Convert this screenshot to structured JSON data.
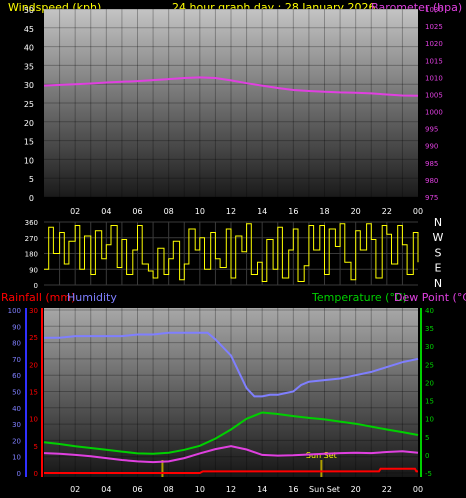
{
  "header": {
    "windspeed_label": "Windspeed (kph)",
    "title": "24 hour graph day : 28 January 2026",
    "barometer_label": "Barometer (hpa)"
  },
  "wind_panel": {
    "left_ticks": [
      "0",
      "5",
      "10",
      "15",
      "20",
      "25",
      "30",
      "35",
      "40",
      "45",
      "50"
    ],
    "right_ticks": [
      "975",
      "980",
      "985",
      "990",
      "995",
      "1000",
      "1005",
      "1010",
      "1015",
      "1020",
      "1025",
      "1030"
    ],
    "hour_ticks": [
      "02",
      "04",
      "06",
      "08",
      "10",
      "12",
      "14",
      "16",
      "18",
      "20",
      "22",
      "00"
    ]
  },
  "direction_panel": {
    "left_ticks": [
      "0",
      "90",
      "180",
      "270",
      "360"
    ],
    "compass": [
      "N",
      "W",
      "S",
      "E",
      "N"
    ]
  },
  "temp_panel": {
    "rainfall_label": "Rainfall (mm)",
    "humidity_label": "Humidity",
    "temperature_label": "Temperature (°C)",
    "dewpoint_label": "Dew Point (°C)",
    "humidity_ticks": [
      "0",
      "10",
      "20",
      "30",
      "40",
      "50",
      "60",
      "70",
      "80",
      "90",
      "100"
    ],
    "rain_ticks": [
      "0",
      "5",
      "10",
      "15",
      "20",
      "25",
      "30"
    ],
    "temp_ticks": [
      "-5",
      "0",
      "5",
      "10",
      "15",
      "20",
      "25",
      "30",
      "35",
      "40"
    ],
    "hour_ticks": [
      "02",
      "04",
      "06",
      "08",
      "10",
      "12",
      "14",
      "16",
      "Sun Set",
      "20",
      "22",
      "00"
    ],
    "sunset_label": "Sun Set"
  },
  "colors": {
    "barometer": "#e040e0",
    "wind_direction": "#ffff00",
    "humidity": "#7f7fff",
    "temperature": "#00d000",
    "dew_point": "#e040e0",
    "rainfall": "#ff0000",
    "sunset_marker": "#b0a000"
  },
  "chart_data": [
    {
      "type": "line",
      "title": "24 hour graph day : 28 January 2026",
      "x_ticks": [
        "02",
        "04",
        "06",
        "08",
        "10",
        "12",
        "14",
        "16",
        "18",
        "20",
        "22",
        "00"
      ],
      "xlim_hours": [
        0,
        24
      ],
      "y_left_label": "Windspeed (kph)",
      "ylim_left": [
        0,
        50
      ],
      "y_right_label": "Barometer (hpa)",
      "ylim_right": [
        975,
        1030
      ],
      "series": [
        {
          "name": "Barometer (hpa)",
          "axis": "right",
          "x": [
            0,
            1,
            2,
            3,
            4,
            5,
            6,
            7,
            8,
            9,
            10,
            11,
            12,
            13,
            14,
            15,
            16,
            17,
            18,
            19,
            20,
            21,
            22,
            23,
            24
          ],
          "values": [
            1007.6,
            1007.8,
            1008.0,
            1008.2,
            1008.5,
            1008.7,
            1008.9,
            1009.2,
            1009.5,
            1009.8,
            1010.0,
            1009.8,
            1009.1,
            1008.3,
            1007.6,
            1006.9,
            1006.3,
            1006.0,
            1005.8,
            1005.6,
            1005.5,
            1005.3,
            1005.0,
            1004.7,
            1004.6
          ]
        }
      ]
    },
    {
      "type": "line",
      "title": "",
      "xlim_hours": [
        0,
        24
      ],
      "ylim": [
        0,
        360
      ],
      "y_ticks": [
        "0",
        "90",
        "180",
        "270",
        "360"
      ],
      "series": [
        {
          "name": "Wind direction",
          "x": [
            0,
            0.3,
            0.6,
            1.0,
            1.3,
            1.6,
            2.0,
            2.3,
            2.6,
            3.0,
            3.3,
            3.7,
            4.0,
            4.3,
            4.7,
            5.0,
            5.3,
            5.7,
            6.0,
            6.3,
            6.7,
            7.0,
            7.3,
            7.7,
            8.0,
            8.3,
            8.7,
            9.0,
            9.3,
            9.7,
            10.0,
            10.3,
            10.7,
            11.0,
            11.3,
            11.7,
            12.0,
            12.3,
            12.7,
            13.0,
            13.3,
            13.7,
            14.0,
            14.3,
            14.7,
            15.0,
            15.3,
            15.7,
            16.0,
            16.3,
            16.7,
            17.0,
            17.3,
            17.7,
            18.0,
            18.3,
            18.7,
            19.0,
            19.3,
            19.7,
            20.0,
            20.3,
            20.7,
            21.0,
            21.3,
            21.7,
            22.0,
            22.3,
            22.7,
            23.0,
            23.3,
            23.7,
            24.0
          ],
          "values": [
            90,
            330,
            180,
            300,
            120,
            250,
            340,
            90,
            280,
            60,
            310,
            150,
            230,
            340,
            100,
            260,
            60,
            200,
            340,
            120,
            80,
            40,
            210,
            60,
            150,
            250,
            30,
            120,
            320,
            200,
            270,
            90,
            300,
            150,
            100,
            320,
            40,
            280,
            190,
            350,
            60,
            130,
            20,
            260,
            90,
            330,
            40,
            200,
            320,
            20,
            110,
            340,
            200,
            340,
            60,
            320,
            220,
            350,
            130,
            30,
            310,
            200,
            350,
            260,
            40,
            340,
            290,
            120,
            340,
            230,
            60,
            300,
            130
          ]
        }
      ]
    },
    {
      "type": "line",
      "title": "",
      "x_ticks": [
        "02",
        "04",
        "06",
        "08",
        "10",
        "12",
        "14",
        "16",
        "Sun Set",
        "20",
        "22",
        "00"
      ],
      "xlim_hours": [
        0,
        24
      ],
      "y_humidity_label": "Humidity",
      "ylim_humidity": [
        0,
        100
      ],
      "y_rain_label": "Rainfall (mm)",
      "ylim_rain": [
        0,
        30
      ],
      "y_temp_label": "Temperature (°C)",
      "ylim_temp": [
        -5,
        40
      ],
      "annotations": [
        "Sun Set"
      ],
      "series": [
        {
          "name": "Humidity",
          "axis": "humidity",
          "x": [
            0,
            1,
            2,
            3,
            4,
            5,
            6,
            7,
            8,
            9,
            10,
            10.5,
            11,
            12,
            12.5,
            13,
            13.5,
            14,
            14.5,
            15,
            15.5,
            16,
            16.5,
            17,
            18,
            19,
            20,
            21,
            22,
            23,
            24
          ],
          "values": [
            83,
            83,
            84,
            84,
            84,
            84,
            85,
            85,
            86,
            86,
            86,
            86,
            82,
            72,
            62,
            52,
            47,
            47,
            48,
            48,
            49,
            50,
            54,
            56,
            57,
            58,
            60,
            62,
            65,
            68,
            70
          ]
        },
        {
          "name": "Temperature (°C)",
          "axis": "temp",
          "x": [
            0,
            1,
            2,
            3,
            4,
            5,
            6,
            7,
            8,
            9,
            10,
            11,
            12,
            13,
            14,
            15,
            16,
            17,
            18,
            19,
            20,
            21,
            22,
            23,
            24
          ],
          "values": [
            3.5,
            3.0,
            2.4,
            1.9,
            1.4,
            0.9,
            0.4,
            0.3,
            0.6,
            1.4,
            2.5,
            4.5,
            7.0,
            10.0,
            11.7,
            11.3,
            10.7,
            10.2,
            9.8,
            9.2,
            8.6,
            7.8,
            7.0,
            6.3,
            5.5
          ]
        },
        {
          "name": "Dew Point (°C)",
          "axis": "temp",
          "x": [
            0,
            1,
            2,
            3,
            4,
            5,
            6,
            7,
            8,
            9,
            10,
            11,
            12,
            13,
            14,
            15,
            16,
            17,
            18,
            19,
            20,
            21,
            22,
            23,
            24
          ],
          "values": [
            0.5,
            0.3,
            0.0,
            -0.4,
            -0.9,
            -1.4,
            -1.8,
            -2.0,
            -1.8,
            -0.9,
            0.4,
            1.6,
            2.4,
            1.5,
            0.0,
            -0.2,
            -0.1,
            0.1,
            0.3,
            0.5,
            0.6,
            0.5,
            0.8,
            1.0,
            0.6
          ]
        },
        {
          "name": "Rainfall (mm)",
          "axis": "rain",
          "x": [
            0,
            10,
            10.2,
            21.5,
            21.6,
            23.8,
            23.9,
            24
          ],
          "values": [
            0,
            0,
            0.3,
            0.3,
            0.8,
            0.8,
            0.3,
            0.3
          ]
        }
      ]
    }
  ]
}
